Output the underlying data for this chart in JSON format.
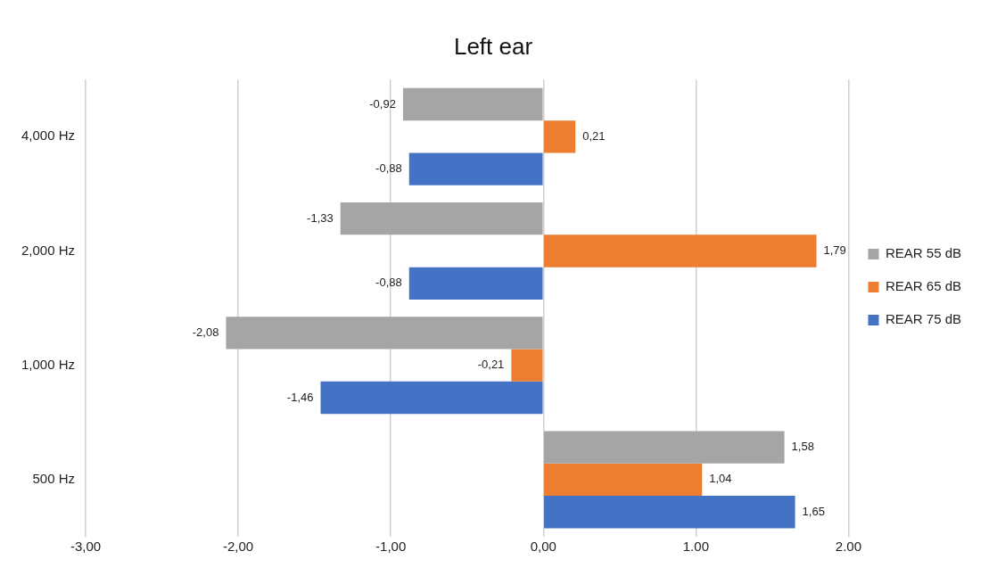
{
  "chart_data": {
    "type": "bar",
    "title": "Left ear",
    "orientation": "horizontal",
    "categories": [
      "4,000 Hz",
      "2,000 Hz",
      "1,000 Hz",
      "500 Hz"
    ],
    "series": [
      {
        "name": "REAR 55 dB",
        "color": "#a5a5a5",
        "values": [
          -0.92,
          -1.33,
          -2.08,
          1.58
        ],
        "value_labels": [
          "-0,92",
          "-1,33",
          "-2,08",
          "1,58"
        ]
      },
      {
        "name": "REAR 65 dB",
        "color": "#ed7d31",
        "values": [
          0.21,
          1.79,
          -0.21,
          1.04
        ],
        "value_labels": [
          "0,21",
          "1,79",
          "-0,21",
          "1,04"
        ]
      },
      {
        "name": "REAR 75 dB",
        "color": "#4472c4",
        "values": [
          -0.88,
          -0.88,
          -1.46,
          1.65
        ],
        "value_labels": [
          "-0,88",
          "-0,88",
          "-1,46",
          "1,65"
        ]
      }
    ],
    "xlim": [
      -3,
      2
    ],
    "xticks": [
      {
        "value": -3,
        "label": "-3,00"
      },
      {
        "value": -2,
        "label": "-2,00"
      },
      {
        "value": -1,
        "label": "-1,00"
      },
      {
        "value": 0,
        "label": "0,00"
      },
      {
        "value": 1,
        "label": "1.00"
      },
      {
        "value": 2,
        "label": "2.00"
      }
    ],
    "grid": "x",
    "legend": "right"
  }
}
